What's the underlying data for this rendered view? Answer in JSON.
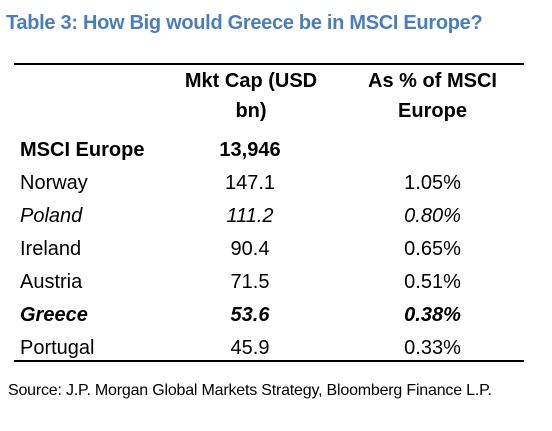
{
  "title": "Table 3: How Big would Greece be in MSCI Europe?",
  "columns": {
    "mkt_cap_line1": "Mkt Cap (USD",
    "mkt_cap_line2": "bn)",
    "pct_line1": "As % of MSCI",
    "pct_line2": "Europe"
  },
  "rows": [
    {
      "name": "MSCI Europe",
      "mkt_cap": "13,946",
      "pct": "",
      "style": "bold"
    },
    {
      "name": "Norway",
      "mkt_cap": "147.1",
      "pct": "1.05%",
      "style": "normal"
    },
    {
      "name": "Poland",
      "mkt_cap": "111.2",
      "pct": "0.80%",
      "style": "italic"
    },
    {
      "name": "Ireland",
      "mkt_cap": "90.4",
      "pct": "0.65%",
      "style": "normal"
    },
    {
      "name": "Austria",
      "mkt_cap": "71.5",
      "pct": "0.51%",
      "style": "normal"
    },
    {
      "name": "Greece",
      "mkt_cap": "53.6",
      "pct": "0.38%",
      "style": "bolditalic"
    },
    {
      "name": "Portugal",
      "mkt_cap": "45.9",
      "pct": "0.33%",
      "style": "normal"
    }
  ],
  "source": "Source: J.P. Morgan Global Markets Strategy, Bloomberg Finance L.P.",
  "colors": {
    "title": "#4a7ebb"
  }
}
